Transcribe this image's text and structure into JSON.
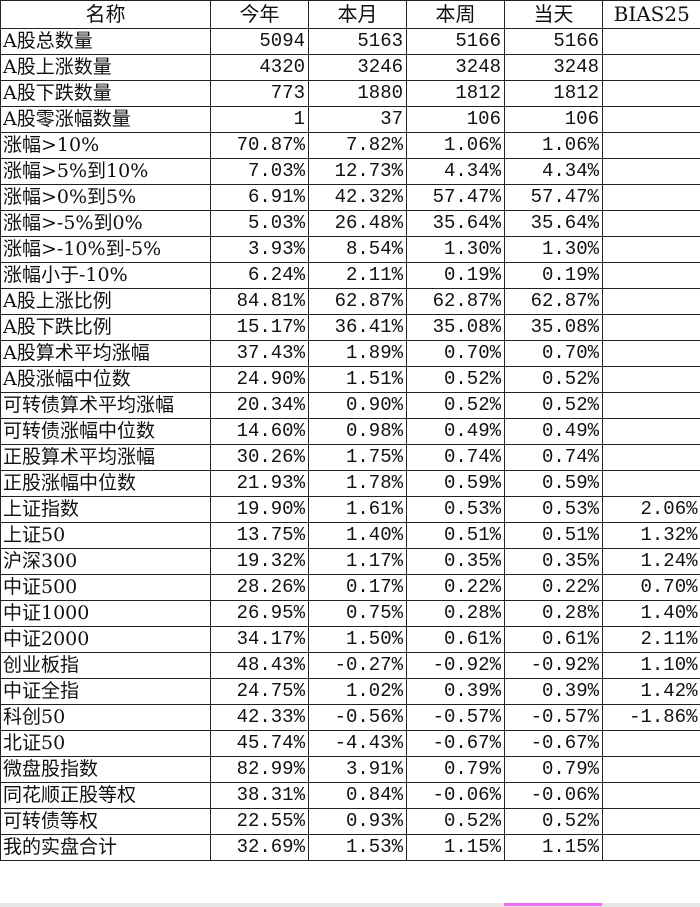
{
  "headers": [
    "名称",
    "今年",
    "本月",
    "本周",
    "当天",
    "BIAS25"
  ],
  "rows": [
    [
      "A股总数量",
      "5094",
      "5163",
      "5166",
      "5166",
      ""
    ],
    [
      "A股上涨数量",
      "4320",
      "3246",
      "3248",
      "3248",
      ""
    ],
    [
      "A股下跌数量",
      "773",
      "1880",
      "1812",
      "1812",
      ""
    ],
    [
      "A股零涨幅数量",
      "1",
      "37",
      "106",
      "106",
      ""
    ],
    [
      "涨幅>10%",
      "70.87%",
      "7.82%",
      "1.06%",
      "1.06%",
      ""
    ],
    [
      "涨幅>5%到10%",
      "7.03%",
      "12.73%",
      "4.34%",
      "4.34%",
      ""
    ],
    [
      "涨幅>0%到5%",
      "6.91%",
      "42.32%",
      "57.47%",
      "57.47%",
      ""
    ],
    [
      "涨幅>-5%到0%",
      "5.03%",
      "26.48%",
      "35.64%",
      "35.64%",
      ""
    ],
    [
      "涨幅>-10%到-5%",
      "3.93%",
      "8.54%",
      "1.30%",
      "1.30%",
      ""
    ],
    [
      "涨幅小于-10%",
      "6.24%",
      "2.11%",
      "0.19%",
      "0.19%",
      ""
    ],
    [
      "A股上涨比例",
      "84.81%",
      "62.87%",
      "62.87%",
      "62.87%",
      ""
    ],
    [
      "A股下跌比例",
      "15.17%",
      "36.41%",
      "35.08%",
      "35.08%",
      ""
    ],
    [
      "A股算术平均涨幅",
      "37.43%",
      "1.89%",
      "0.70%",
      "0.70%",
      ""
    ],
    [
      "A股涨幅中位数",
      "24.90%",
      "1.51%",
      "0.52%",
      "0.52%",
      ""
    ],
    [
      "可转债算术平均涨幅",
      "20.34%",
      "0.90%",
      "0.52%",
      "0.52%",
      ""
    ],
    [
      "可转债涨幅中位数",
      "14.60%",
      "0.98%",
      "0.49%",
      "0.49%",
      ""
    ],
    [
      "正股算术平均涨幅",
      "30.26%",
      "1.75%",
      "0.74%",
      "0.74%",
      ""
    ],
    [
      "正股涨幅中位数",
      "21.93%",
      "1.78%",
      "0.59%",
      "0.59%",
      ""
    ],
    [
      "上证指数",
      "19.90%",
      "1.61%",
      "0.53%",
      "0.53%",
      "2.06%"
    ],
    [
      "上证50",
      "13.75%",
      "1.40%",
      "0.51%",
      "0.51%",
      "1.32%"
    ],
    [
      "沪深300",
      "19.32%",
      "1.17%",
      "0.35%",
      "0.35%",
      "1.24%"
    ],
    [
      "中证500",
      "28.26%",
      "0.17%",
      "0.22%",
      "0.22%",
      "0.70%"
    ],
    [
      "中证1000",
      "26.95%",
      "0.75%",
      "0.28%",
      "0.28%",
      "1.40%"
    ],
    [
      "中证2000",
      "34.17%",
      "1.50%",
      "0.61%",
      "0.61%",
      "2.11%"
    ],
    [
      "创业板指",
      "48.43%",
      "-0.27%",
      "-0.92%",
      "-0.92%",
      "1.10%"
    ],
    [
      "中证全指",
      "24.75%",
      "1.02%",
      "0.39%",
      "0.39%",
      "1.42%"
    ],
    [
      "科创50",
      "42.33%",
      "-0.56%",
      "-0.57%",
      "-0.57%",
      "-1.86%"
    ],
    [
      "北证50",
      "45.74%",
      "-4.43%",
      "-0.67%",
      "-0.67%",
      ""
    ],
    [
      "微盘股指数",
      "82.99%",
      "3.91%",
      "0.79%",
      "0.79%",
      ""
    ],
    [
      "同花顺正股等权",
      "38.31%",
      "0.84%",
      "-0.06%",
      "-0.06%",
      ""
    ],
    [
      "可转债等权",
      "22.55%",
      "0.93%",
      "0.52%",
      "0.52%",
      ""
    ],
    [
      "我的实盘合计",
      "32.69%",
      "1.53%",
      "1.15%",
      "1.15%",
      ""
    ]
  ]
}
